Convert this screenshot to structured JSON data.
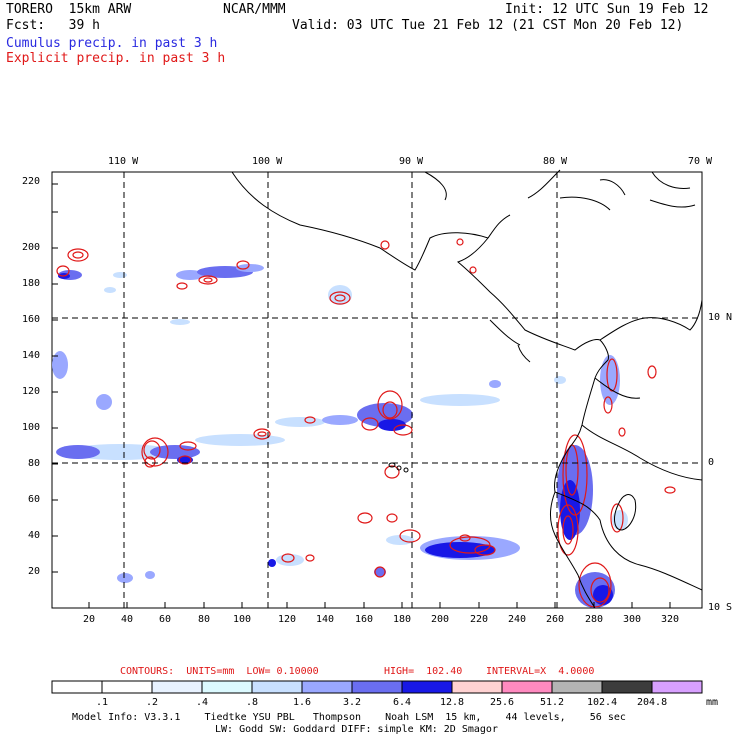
{
  "header": {
    "model": "TORERO  15km ARW",
    "org": "NCAR/MMM",
    "init": "Init: 12 UTC Sun 19 Feb 12",
    "fcst": "Fcst:   39 h",
    "valid": "Valid: 03 UTC Tue 21 Feb 12 (21 CST Mon 20 Feb 12)",
    "cumulus": "Cumulus precip. in past 3 h",
    "explicit": "Explicit precip. in past 3 h"
  },
  "colors": {
    "cumulus_text": "#2a2ae0",
    "explicit_text": "#e01818",
    "contour": "#e01818",
    "grid": "#000000"
  },
  "lon_labels": [
    "110 W",
    "100 W",
    "90 W",
    "80 W",
    "70 W"
  ],
  "lat_labels": [
    "10 N",
    "0",
    "10 S"
  ],
  "y_ticks": [
    "20",
    "40",
    "60",
    "80",
    "100",
    "120",
    "140",
    "160",
    "180",
    "200",
    "220"
  ],
  "x_ticks": [
    "20",
    "40",
    "60",
    "80",
    "100",
    "120",
    "140",
    "160",
    "180",
    "200",
    "220",
    "240",
    "260",
    "280",
    "300",
    "320"
  ],
  "contour_info": {
    "label": "CONTOURS:  UNITS=mm  LOW= 0.10000",
    "high": "HIGH=  102.40",
    "interval": "INTERVAL=X  4.0000"
  },
  "colorbar": {
    "levels": [
      ".1",
      ".2",
      ".4",
      ".8",
      "1.6",
      "3.2",
      "6.4",
      "12.8",
      "25.6",
      "51.2",
      "102.4",
      "204.8"
    ],
    "unit": "mm",
    "colors": [
      "#ffffff",
      "#ffffff",
      "#e8f2ff",
      "#dcfaff",
      "#c8e0ff",
      "#9aa8ff",
      "#6a6ef0",
      "#1818e6",
      "#ffd2d2",
      "#ff8ac0",
      "#b4b4b4",
      "#3c3c3c",
      "#d8a0ff"
    ]
  },
  "footer": {
    "line1": "Model Info: V3.3.1    Tiedtke YSU PBL   Thompson    Noah LSM  15 km,    44 levels,    56 sec",
    "line2": "LW: Godd SW: Goddard DIFF: simple KM: 2D Smagor"
  }
}
